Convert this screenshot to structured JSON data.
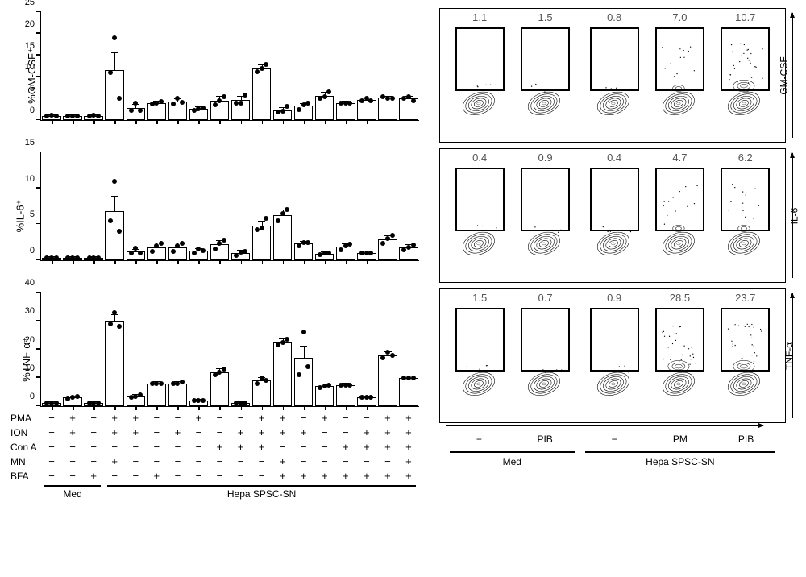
{
  "colors": {
    "fg": "#000000",
    "bg": "#ffffff",
    "num": "#666666"
  },
  "bar_unit_width_pct": 5.0,
  "bar_gap_pct": 0.3,
  "treat_labels": [
    "PMA",
    "ION",
    "Con A",
    "MN",
    "BFA"
  ],
  "treatments": [
    [
      "−",
      "−",
      "−",
      "−",
      "−"
    ],
    [
      "+",
      "+",
      "−",
      "−",
      "−"
    ],
    [
      "−",
      "−",
      "−",
      "−",
      "+"
    ],
    [
      "+",
      "+",
      "−",
      "+",
      "−"
    ],
    [
      "+",
      "+",
      "−",
      "−",
      "−"
    ],
    [
      "−",
      "−",
      "−",
      "−",
      "+"
    ],
    [
      "−",
      "+",
      "−",
      "−",
      "−"
    ],
    [
      "+",
      "−",
      "−",
      "−",
      "−"
    ],
    [
      "−",
      "−",
      "+",
      "−",
      "−"
    ],
    [
      "−",
      "+",
      "+",
      "−",
      "−"
    ],
    [
      "+",
      "+",
      "+",
      "−",
      "−"
    ],
    [
      "+",
      "+",
      "−",
      "+",
      "+"
    ],
    [
      "−",
      "+",
      "−",
      "−",
      "+"
    ],
    [
      "+",
      "−",
      "−",
      "−",
      "+"
    ],
    [
      "−",
      "−",
      "+",
      "−",
      "+"
    ],
    [
      "−",
      "+",
      "+",
      "−",
      "+"
    ],
    [
      "+",
      "+",
      "+",
      "−",
      "+"
    ],
    [
      "+",
      "+",
      "+",
      "+",
      "+"
    ]
  ],
  "group_lines": [
    {
      "label": "Med",
      "start": 0,
      "end": 2
    },
    {
      "label": "Hepa SPSC-SN",
      "start": 3,
      "end": 17
    }
  ],
  "charts": [
    {
      "ylabel": "%GM-CSF⁺",
      "ymax": 25,
      "ystep": 5,
      "bars": [
        {
          "m": 1.0,
          "e": 0.2,
          "p": [
            1.0,
            1.1,
            0.9
          ]
        },
        {
          "m": 1.0,
          "e": 0.2,
          "p": [
            1.0,
            1.0,
            1.0
          ]
        },
        {
          "m": 1.0,
          "e": 0.2,
          "p": [
            1.0,
            1.1,
            0.9
          ]
        },
        {
          "m": 11.5,
          "e": 4.0,
          "p": [
            11,
            19,
            5
          ]
        },
        {
          "m": 2.8,
          "e": 0.8,
          "p": [
            2.2,
            4.0,
            2.2
          ]
        },
        {
          "m": 4.0,
          "e": 0.3,
          "p": [
            3.7,
            4.0,
            4.3
          ]
        },
        {
          "m": 4.3,
          "e": 0.5,
          "p": [
            3.7,
            5.0,
            4.2
          ]
        },
        {
          "m": 2.6,
          "e": 0.3,
          "p": [
            2.3,
            2.7,
            2.8
          ]
        },
        {
          "m": 4.5,
          "e": 1.0,
          "p": [
            3.5,
            4.5,
            5.5
          ]
        },
        {
          "m": 4.6,
          "e": 0.8,
          "p": [
            4.0,
            4.0,
            5.8
          ]
        },
        {
          "m": 12.0,
          "e": 0.7,
          "p": [
            11.2,
            12.0,
            12.8
          ]
        },
        {
          "m": 2.3,
          "e": 0.5,
          "p": [
            1.8,
            2.0,
            3.2
          ]
        },
        {
          "m": 3.3,
          "e": 0.5,
          "p": [
            2.5,
            3.5,
            4.0
          ]
        },
        {
          "m": 5.6,
          "e": 0.7,
          "p": [
            5.0,
            5.5,
            6.5
          ]
        },
        {
          "m": 4.0,
          "e": 0.3,
          "p": [
            4.0,
            4.0,
            4.0
          ]
        },
        {
          "m": 4.7,
          "e": 0.3,
          "p": [
            4.5,
            5.0,
            4.5
          ]
        },
        {
          "m": 5.2,
          "e": 0.3,
          "p": [
            5.5,
            5.0,
            5.0
          ]
        },
        {
          "m": 5.0,
          "e": 0.4,
          "p": [
            5.0,
            5.4,
            4.5
          ]
        }
      ]
    },
    {
      "ylabel": "%IL-6⁺",
      "ymax": 15,
      "ystep": 5,
      "bars": [
        {
          "m": 0.3,
          "e": 0.1,
          "p": [
            0.3,
            0.3,
            0.3
          ]
        },
        {
          "m": 0.3,
          "e": 0.1,
          "p": [
            0.3,
            0.3,
            0.3
          ]
        },
        {
          "m": 0.3,
          "e": 0.1,
          "p": [
            0.3,
            0.3,
            0.3
          ]
        },
        {
          "m": 6.8,
          "e": 2.0,
          "p": [
            5.5,
            11,
            4.0
          ]
        },
        {
          "m": 1.2,
          "e": 0.3,
          "p": [
            1.0,
            1.7,
            1.0
          ]
        },
        {
          "m": 1.8,
          "e": 0.5,
          "p": [
            1.2,
            2.0,
            2.3
          ]
        },
        {
          "m": 1.8,
          "e": 0.5,
          "p": [
            1.2,
            2.0,
            2.3
          ]
        },
        {
          "m": 1.3,
          "e": 0.3,
          "p": [
            1.0,
            1.6,
            1.3
          ]
        },
        {
          "m": 2.2,
          "e": 0.5,
          "p": [
            1.6,
            2.3,
            2.8
          ]
        },
        {
          "m": 1.0,
          "e": 0.3,
          "p": [
            0.7,
            1.1,
            1.2
          ]
        },
        {
          "m": 4.8,
          "e": 0.6,
          "p": [
            4.2,
            4.5,
            5.8
          ]
        },
        {
          "m": 6.3,
          "e": 0.6,
          "p": [
            5.5,
            6.5,
            7.0
          ]
        },
        {
          "m": 2.3,
          "e": 0.3,
          "p": [
            2.0,
            2.5,
            2.5
          ]
        },
        {
          "m": 0.9,
          "e": 0.2,
          "p": [
            0.8,
            1.0,
            1.0
          ]
        },
        {
          "m": 1.9,
          "e": 0.3,
          "p": [
            1.5,
            2.0,
            2.2
          ]
        },
        {
          "m": 1.0,
          "e": 0.2,
          "p": [
            1.0,
            1.0,
            1.0
          ]
        },
        {
          "m": 2.9,
          "e": 0.5,
          "p": [
            2.3,
            3.0,
            3.5
          ]
        },
        {
          "m": 1.8,
          "e": 0.3,
          "p": [
            1.5,
            1.8,
            2.1
          ]
        }
      ]
    },
    {
      "ylabel": "%TNF-α⁺",
      "ymax": 40,
      "ystep": 10,
      "bars": [
        {
          "m": 1.0,
          "e": 0.3,
          "p": [
            1.0,
            1.0,
            1.0
          ]
        },
        {
          "m": 3.0,
          "e": 0.5,
          "p": [
            2.5,
            3.0,
            3.5
          ]
        },
        {
          "m": 1.0,
          "e": 0.3,
          "p": [
            1.0,
            1.0,
            1.0
          ]
        },
        {
          "m": 30.0,
          "e": 2.0,
          "p": [
            29,
            33,
            28
          ]
        },
        {
          "m": 3.5,
          "e": 0.5,
          "p": [
            3.0,
            3.5,
            4.0
          ]
        },
        {
          "m": 8.0,
          "e": 0.4,
          "p": [
            8.0,
            8.0,
            8.0
          ]
        },
        {
          "m": 8.0,
          "e": 0.4,
          "p": [
            8.0,
            8.0,
            8.5
          ]
        },
        {
          "m": 2.0,
          "e": 0.3,
          "p": [
            2.0,
            2.0,
            2.0
          ]
        },
        {
          "m": 12.0,
          "e": 1.0,
          "p": [
            11,
            12,
            13
          ]
        },
        {
          "m": 1.0,
          "e": 0.3,
          "p": [
            1.0,
            1.0,
            1.0
          ]
        },
        {
          "m": 9.0,
          "e": 1.0,
          "p": [
            8,
            10,
            9
          ]
        },
        {
          "m": 22.5,
          "e": 1.0,
          "p": [
            21.5,
            22.5,
            23.5
          ]
        },
        {
          "m": 17.0,
          "e": 4.0,
          "p": [
            11,
            26,
            14
          ]
        },
        {
          "m": 7.0,
          "e": 0.6,
          "p": [
            6.5,
            7,
            7.5
          ]
        },
        {
          "m": 7.5,
          "e": 0.4,
          "p": [
            7.5,
            7.5,
            7.5
          ]
        },
        {
          "m": 3.0,
          "e": 0.5,
          "p": [
            3,
            3,
            3
          ]
        },
        {
          "m": 18.0,
          "e": 1.0,
          "p": [
            17,
            19,
            18
          ]
        },
        {
          "m": 10.0,
          "e": 0.5,
          "p": [
            10,
            10,
            10
          ]
        }
      ]
    }
  ],
  "facs_rows": [
    {
      "ylabel": "GM-CSF",
      "nums": [
        "1.1",
        "1.5",
        "0.8",
        "7.0",
        "10.7"
      ]
    },
    {
      "ylabel": "IL-6",
      "nums": [
        "0.4",
        "0.9",
        "0.4",
        "4.7",
        "6.2"
      ]
    },
    {
      "ylabel": "TNF-α",
      "nums": [
        "1.5",
        "0.7",
        "0.9",
        "28.5",
        "23.7"
      ]
    }
  ],
  "facs_xlabels": [
    "−",
    "PIB",
    "−",
    "PM",
    "PIB"
  ],
  "facs_groups": [
    {
      "label": "Med",
      "start": 0,
      "end": 1
    },
    {
      "label": "Hepa SPSC-SN",
      "start": 2,
      "end": 4
    }
  ],
  "facs_panel_left_pct": [
    3,
    22,
    42,
    61,
    80
  ],
  "facs_panel_width_pct": 17
}
